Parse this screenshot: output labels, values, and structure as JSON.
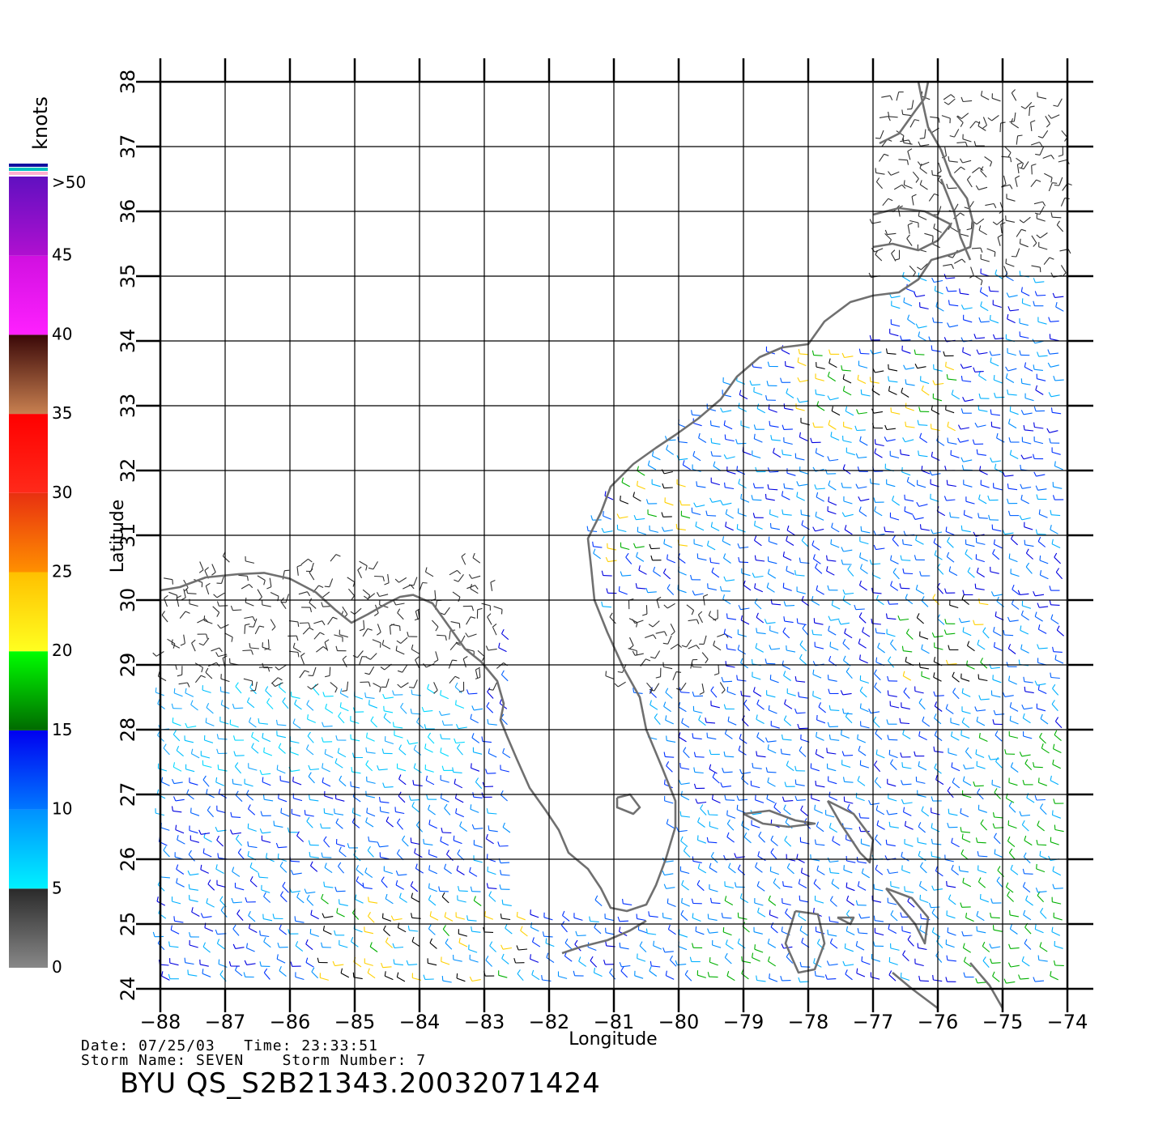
{
  "map": {
    "lon_range": [
      -88,
      -74
    ],
    "lat_range": [
      24,
      38
    ],
    "xlabel": "Longitude",
    "ylabel": "Latitude",
    "x_ticks": [
      "−88",
      "−87",
      "−86",
      "−85",
      "−84",
      "−83",
      "−82",
      "−81",
      "−80",
      "−79",
      "−78",
      "−77",
      "−76",
      "−75",
      "−74"
    ],
    "y_ticks": [
      "24",
      "25",
      "26",
      "27",
      "28",
      "29",
      "30",
      "31",
      "32",
      "33",
      "34",
      "35",
      "36",
      "37",
      "38"
    ],
    "grid": true,
    "vector_field": "wind barbs colored by speed (knots)"
  },
  "colorbar": {
    "title": "knots",
    "labels": [
      ">50",
      "45",
      "40",
      "35",
      "30",
      "25",
      "20",
      "15",
      "10",
      "5",
      "0"
    ],
    "bands": [
      {
        "from": 0,
        "to": 5,
        "colors": [
          "#888888",
          "#2a2a2a"
        ]
      },
      {
        "from": 5,
        "to": 10,
        "colors": [
          "#00f2ff",
          "#0090ff"
        ]
      },
      {
        "from": 10,
        "to": 15,
        "colors": [
          "#0078ff",
          "#0000f0"
        ]
      },
      {
        "from": 15,
        "to": 20,
        "colors": [
          "#006a00",
          "#00ff00"
        ]
      },
      {
        "from": 20,
        "to": 25,
        "colors": [
          "#ffff20",
          "#ffc000"
        ]
      },
      {
        "from": 25,
        "to": 30,
        "colors": [
          "#ff9000",
          "#e83010"
        ]
      },
      {
        "from": 30,
        "to": 35,
        "colors": [
          "#ff2a1a",
          "#ff0000"
        ]
      },
      {
        "from": 35,
        "to": 40,
        "colors": [
          "#c88050",
          "#3a0808"
        ]
      },
      {
        "from": 40,
        "to": 45,
        "colors": [
          "#ff20ff",
          "#d010e0"
        ]
      },
      {
        "from": 45,
        "to": 50,
        "colors": [
          "#b010d0",
          "#6010c0"
        ]
      }
    ]
  },
  "footer": {
    "line1": "Date: 07/25/03   Time: 23:33:51",
    "line2": "Storm Name: SEVEN    Storm Number: 7",
    "product": "BYU QS_S2B21343.20032071424"
  }
}
